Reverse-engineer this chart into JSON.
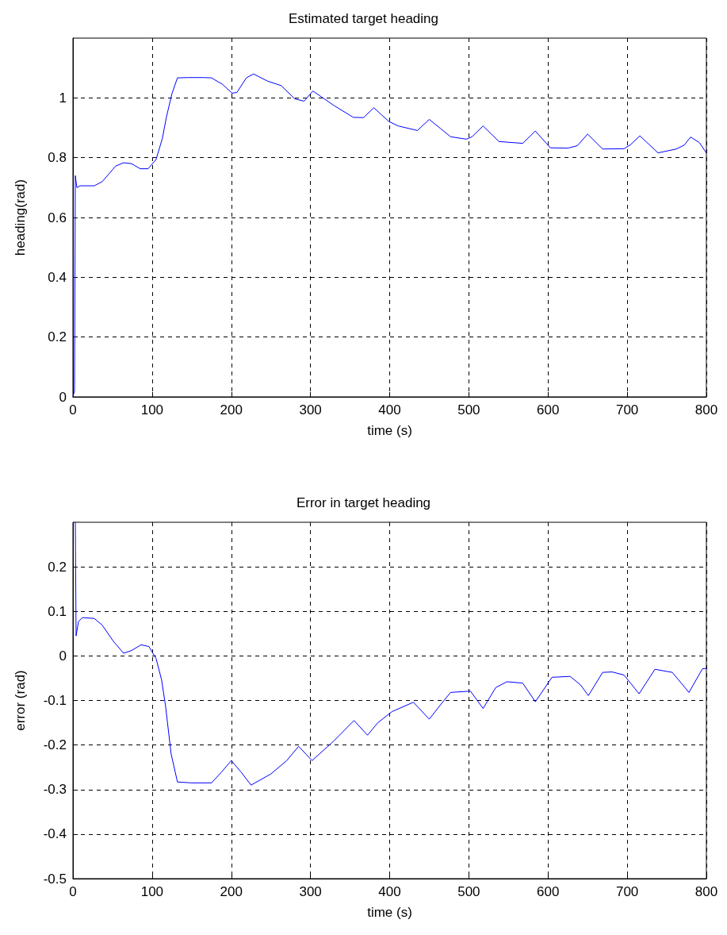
{
  "chart_data": [
    {
      "type": "line",
      "title": "Estimated target heading",
      "xlabel": "time (s)",
      "ylabel": "heading(rad)",
      "xlim": [
        0,
        800
      ],
      "xticks": [
        0,
        100,
        200,
        300,
        400,
        500,
        600,
        700,
        800
      ],
      "ylim": [
        0,
        1.2
      ],
      "yticks": [
        0,
        0.2,
        0.4,
        0.6,
        0.8,
        1
      ],
      "grid": true,
      "line_style": "solid",
      "marker": "none",
      "series": [
        {
          "color": "#0000ff",
          "x": [
            0,
            2,
            3,
            4,
            5,
            9,
            27,
            37,
            54,
            64,
            74,
            85,
            95,
            105,
            113,
            118,
            125,
            132,
            145,
            165,
            175,
            189,
            201,
            207,
            219,
            228,
            246,
            263,
            280,
            292,
            303,
            330,
            354,
            367,
            380,
            399,
            411,
            435,
            450,
            464,
            477,
            497,
            504,
            518,
            538,
            568,
            584,
            603,
            625,
            637,
            650,
            669,
            696,
            704,
            716,
            739,
            762,
            772,
            780,
            791,
            800
          ],
          "values": [
            0,
            0.02,
            0.74,
            0.72,
            0.7,
            0.706,
            0.706,
            0.72,
            0.772,
            0.783,
            0.78,
            0.763,
            0.763,
            0.794,
            0.865,
            0.935,
            1.014,
            1.067,
            1.068,
            1.068,
            1.067,
            1.045,
            1.016,
            1.018,
            1.067,
            1.08,
            1.056,
            1.041,
            0.997,
            0.989,
            1.023,
            0.974,
            0.935,
            0.934,
            0.967,
            0.921,
            0.906,
            0.891,
            0.928,
            0.898,
            0.87,
            0.862,
            0.87,
            0.906,
            0.854,
            0.848,
            0.889,
            0.833,
            0.832,
            0.84,
            0.879,
            0.829,
            0.83,
            0.843,
            0.873,
            0.816,
            0.829,
            0.842,
            0.869,
            0.851,
            0.816
          ]
        }
      ]
    },
    {
      "type": "line",
      "title": "Error in target heading",
      "xlabel": "time (s)",
      "ylabel": "error (rad)",
      "xlim": [
        0,
        800
      ],
      "xticks": [
        0,
        100,
        200,
        300,
        400,
        500,
        600,
        700,
        800
      ],
      "ylim": [
        -0.5,
        0.3
      ],
      "yticks": [
        -0.5,
        -0.4,
        -0.3,
        -0.2,
        -0.1,
        0,
        0.1,
        0.2
      ],
      "grid": true,
      "line_style": "solid",
      "marker": "none",
      "series": [
        {
          "color": "#0000ff",
          "x": [
            3,
            4,
            7,
            12,
            27,
            37,
            51,
            64,
            74,
            86,
            96,
            105,
            112,
            117,
            124,
            132,
            150,
            175,
            188,
            200,
            212,
            225,
            250,
            270,
            285,
            302,
            330,
            355,
            372,
            385,
            403,
            430,
            450,
            465,
            477,
            502,
            518,
            534,
            548,
            568,
            584,
            605,
            628,
            641,
            651,
            669,
            681,
            696,
            715,
            735,
            757,
            778,
            795,
            800
          ],
          "values": [
            0.3,
            0.045,
            0.077,
            0.086,
            0.084,
            0.069,
            0.033,
            0.006,
            0.012,
            0.025,
            0.021,
            -0.006,
            -0.054,
            -0.113,
            -0.22,
            -0.283,
            -0.285,
            -0.285,
            -0.26,
            -0.235,
            -0.26,
            -0.29,
            -0.265,
            -0.235,
            -0.203,
            -0.235,
            -0.19,
            -0.145,
            -0.178,
            -0.15,
            -0.125,
            -0.104,
            -0.142,
            -0.108,
            -0.082,
            -0.079,
            -0.118,
            -0.071,
            -0.058,
            -0.061,
            -0.103,
            -0.048,
            -0.046,
            -0.065,
            -0.089,
            -0.037,
            -0.036,
            -0.043,
            -0.085,
            -0.03,
            -0.037,
            -0.082,
            -0.029,
            -0.028
          ]
        }
      ]
    }
  ]
}
